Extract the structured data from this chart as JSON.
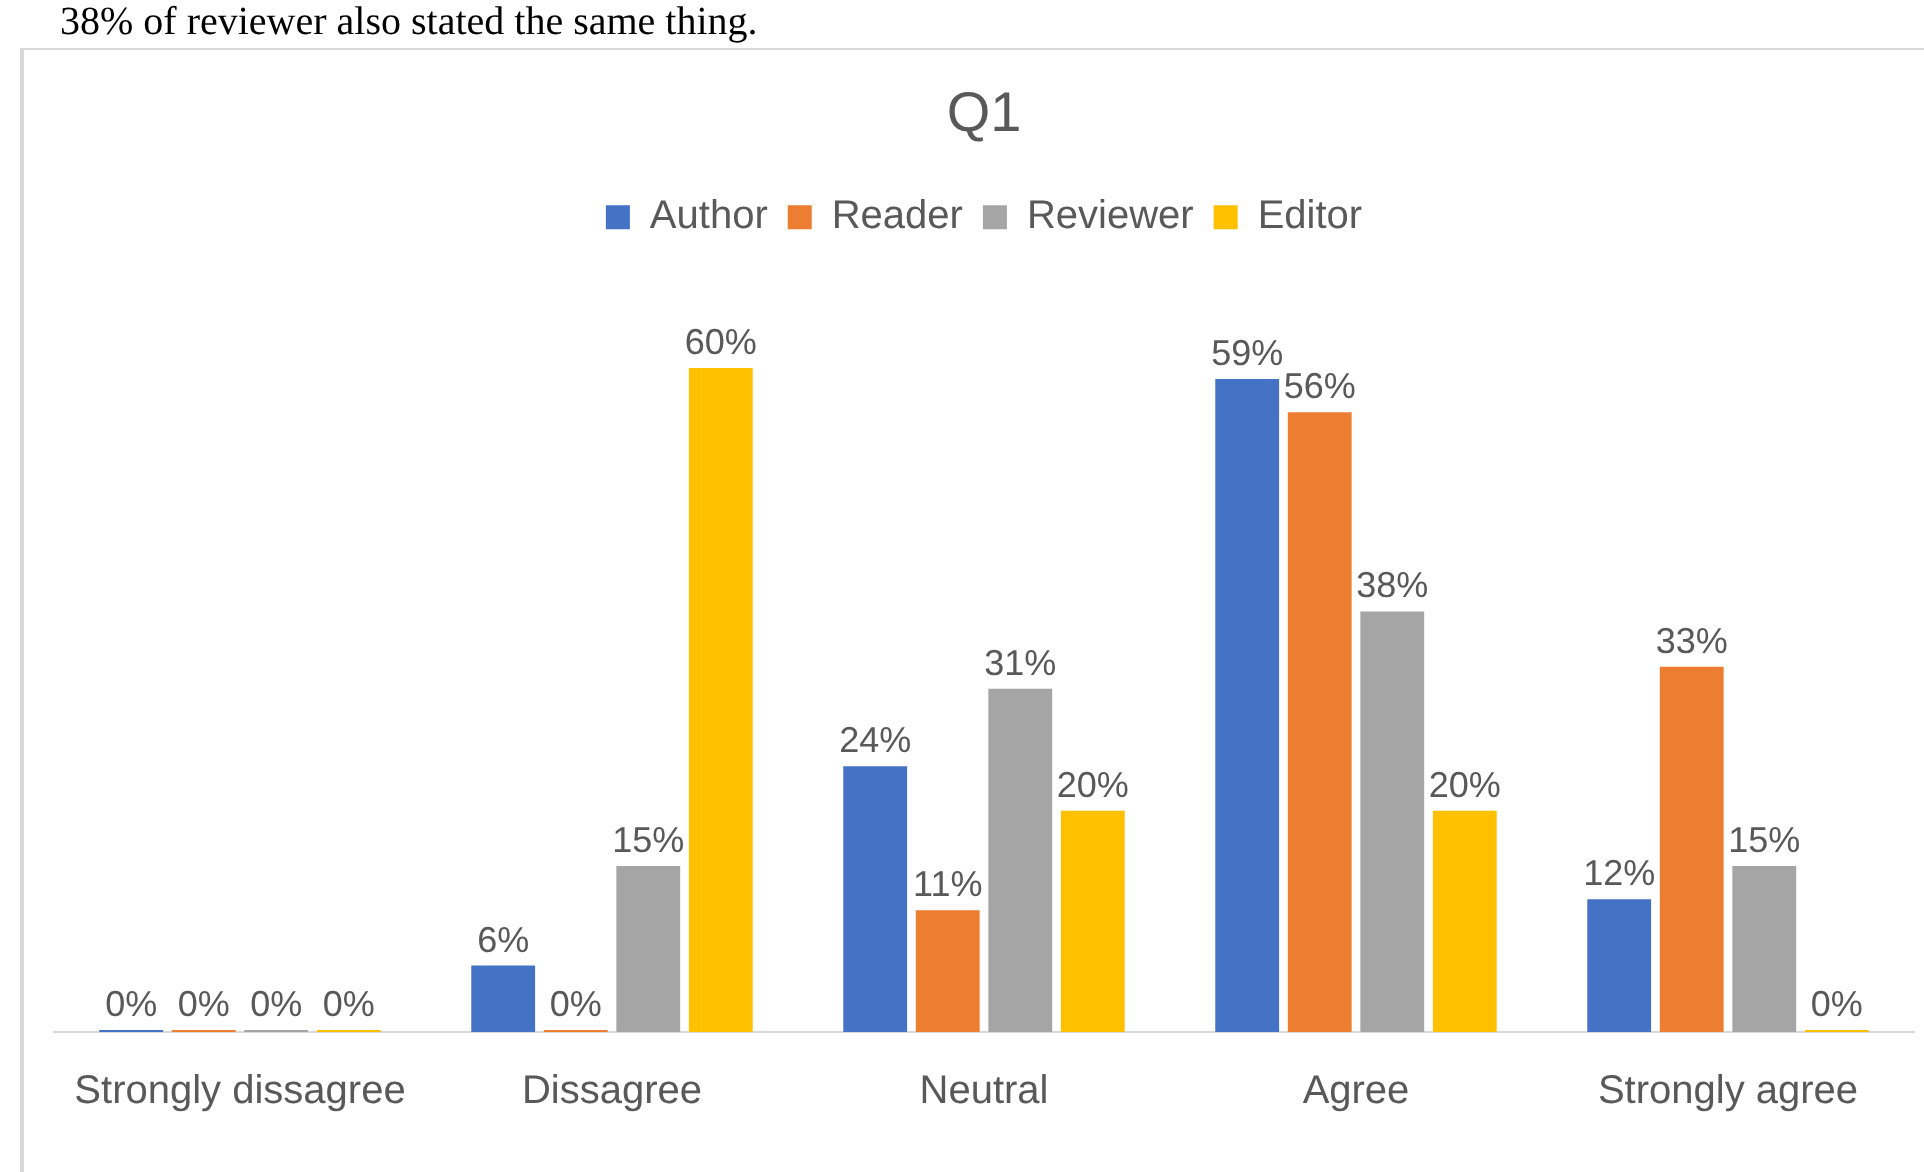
{
  "chart_data": {
    "type": "bar",
    "title": "Q1",
    "categories": [
      "Strongly dissagree",
      "Dissagree",
      "Neutral",
      "Agree",
      "Strongly agree"
    ],
    "series": [
      {
        "name": "Author",
        "color": "#4472c4",
        "values": [
          0,
          6,
          24,
          59,
          12
        ],
        "value_labels": [
          "0%",
          "6%",
          "24%",
          "59%",
          "12%"
        ]
      },
      {
        "name": "Reader",
        "color": "#ed7d31",
        "values": [
          0,
          0,
          11,
          56,
          33
        ],
        "value_labels": [
          "0%",
          "0%",
          "11%",
          "56%",
          "33%"
        ]
      },
      {
        "name": "Reviewer",
        "color": "#a5a5a5",
        "values": [
          0,
          15,
          31,
          38,
          15
        ],
        "value_labels": [
          "0%",
          "15%",
          "31%",
          "38%",
          "15%"
        ]
      },
      {
        "name": "Editor",
        "color": "#ffc000",
        "values": [
          0,
          60,
          20,
          20,
          0
        ],
        "value_labels": [
          "0%",
          "60%",
          "20%",
          "20%",
          "0%"
        ]
      }
    ],
    "legend": "top",
    "grid": false,
    "annotations": [
      "38% of reviewer also stated the same thing."
    ]
  }
}
